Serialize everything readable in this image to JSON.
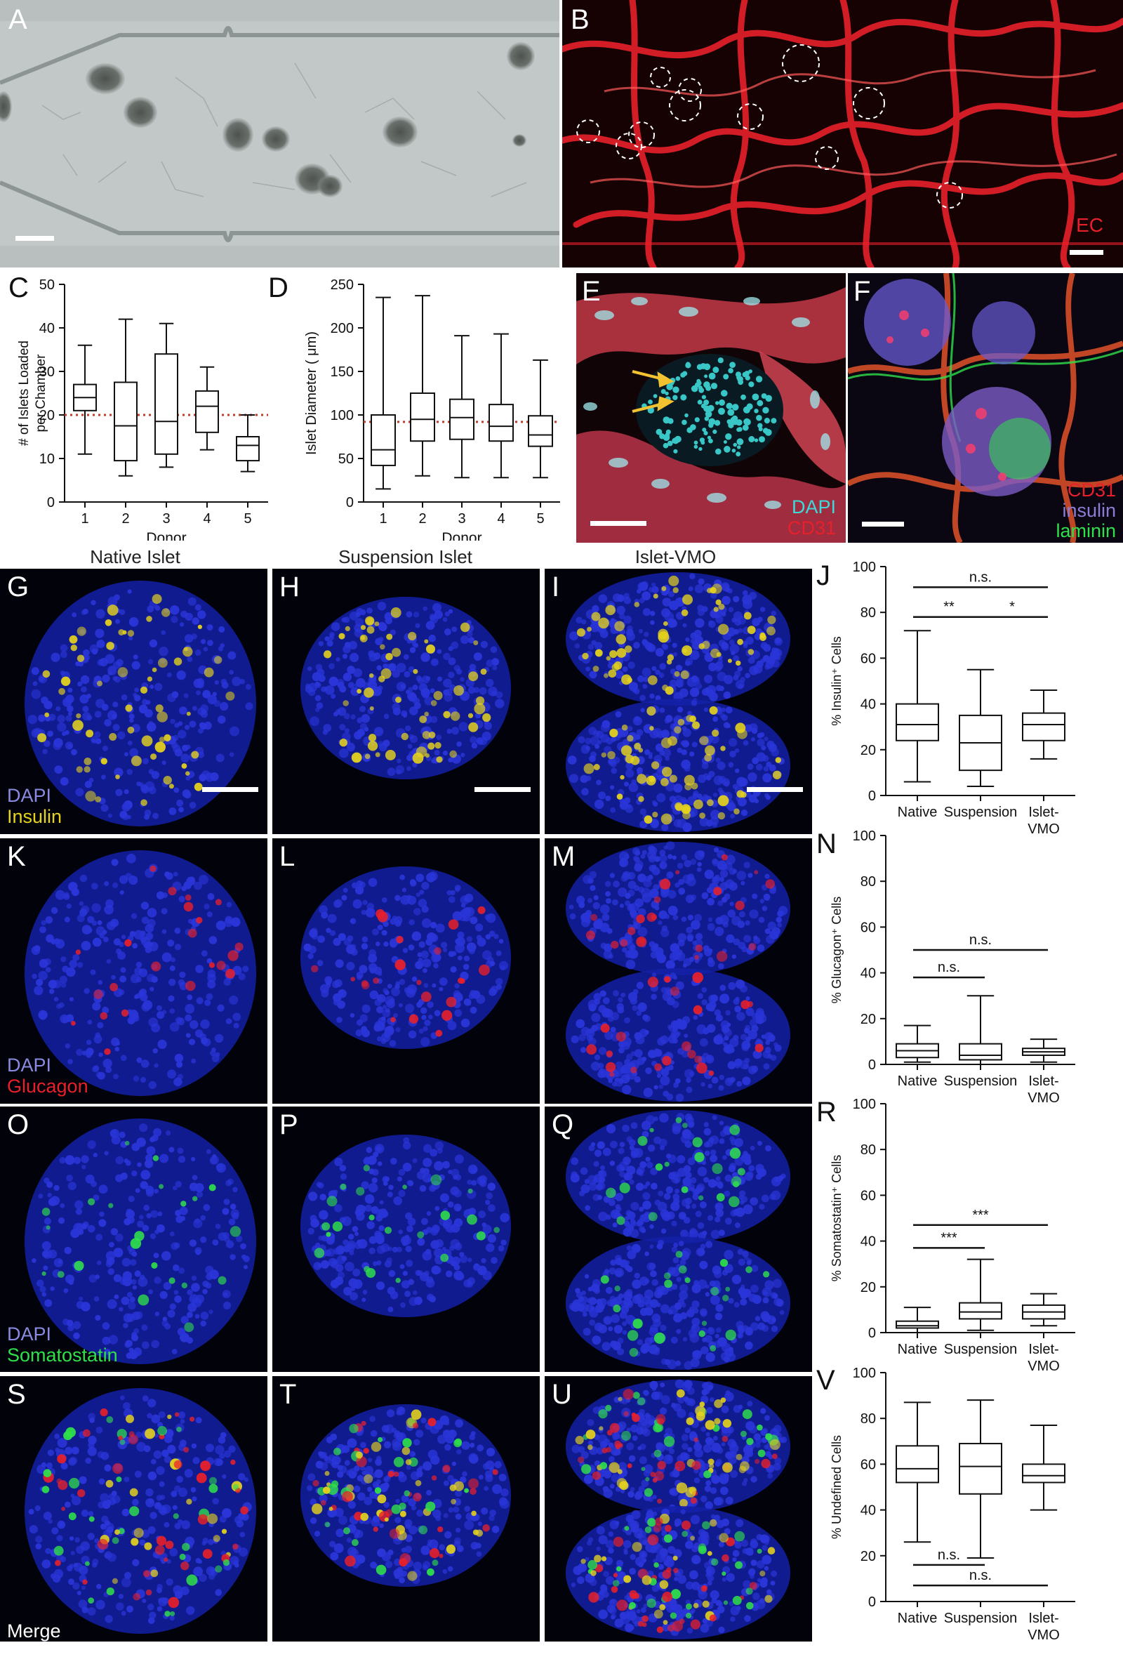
{
  "panel_labels": [
    "A",
    "B",
    "C",
    "D",
    "E",
    "F",
    "G",
    "H",
    "I",
    "J",
    "K",
    "L",
    "M",
    "N",
    "O",
    "P",
    "Q",
    "R",
    "S",
    "T",
    "U",
    "V"
  ],
  "column_titles": [
    "Native Islet",
    "Suspension Islet",
    "Islet-VMO"
  ],
  "stains": {
    "b": [
      "EC"
    ],
    "e": [
      "DAPI",
      "CD31"
    ],
    "f": [
      "CD31",
      "insulin",
      "laminin"
    ],
    "g": [
      "DAPI",
      "Insulin"
    ],
    "k": [
      "DAPI",
      "Glucagon"
    ],
    "o": [
      "DAPI",
      "Somatostatin"
    ],
    "s": [
      "Merge"
    ]
  },
  "colors": {
    "red": "#e8202a",
    "cyan": "#3fd9d9",
    "yellow": "#e6d31c",
    "blue": "#2a35d8",
    "green": "#2fe04a",
    "purple": "#8c7cd6",
    "violet": "#6a5bd6",
    "refline": "#c0392b"
  },
  "chart_data": [
    {
      "id": "C",
      "type": "boxplot",
      "xlabel": "Donor",
      "ylabel": "# of Islets Loaded per Chamber",
      "categories": [
        "1",
        "2",
        "3",
        "4",
        "5"
      ],
      "yticks": [
        "0",
        "10",
        "20",
        "30",
        "40",
        "50"
      ],
      "ylim": [
        0,
        50
      ],
      "reference_line": 20,
      "boxes": [
        {
          "min": 11,
          "q1": 21,
          "median": 24,
          "q3": 27,
          "max": 36
        },
        {
          "min": 6,
          "q1": 9.5,
          "median": 17.5,
          "q3": 27.5,
          "max": 42
        },
        {
          "min": 8,
          "q1": 11,
          "median": 18.5,
          "q3": 34,
          "max": 41
        },
        {
          "min": 12,
          "q1": 16,
          "median": 22,
          "q3": 25.5,
          "max": 31
        },
        {
          "min": 7,
          "q1": 9.5,
          "median": 13,
          "q3": 15,
          "max": 20
        }
      ]
    },
    {
      "id": "D",
      "type": "boxplot",
      "xlabel": "Donor",
      "ylabel": "Islet Diameter ( μm)",
      "categories": [
        "1",
        "2",
        "3",
        "4",
        "5"
      ],
      "yticks": [
        "0",
        "50",
        "100",
        "150",
        "200",
        "250"
      ],
      "ylim": [
        0,
        250
      ],
      "reference_line": 92,
      "boxes": [
        {
          "min": 15,
          "q1": 42,
          "median": 60,
          "q3": 100,
          "max": 235
        },
        {
          "min": 30,
          "q1": 70,
          "median": 95,
          "q3": 125,
          "max": 237
        },
        {
          "min": 28,
          "q1": 72,
          "median": 97,
          "q3": 118,
          "max": 191
        },
        {
          "min": 28,
          "q1": 70,
          "median": 87,
          "q3": 112,
          "max": 193
        },
        {
          "min": 28,
          "q1": 64,
          "median": 77,
          "q3": 99,
          "max": 163
        }
      ]
    },
    {
      "id": "J",
      "type": "boxplot",
      "ylabel": "% Insulin⁺ Cells",
      "categories": [
        "Native",
        "Suspension",
        "Islet-\nVMO"
      ],
      "yticks": [
        "0",
        "20",
        "40",
        "60",
        "80",
        "100"
      ],
      "ylim": [
        0,
        100
      ],
      "boxes": [
        {
          "min": 6,
          "q1": 24,
          "median": 31,
          "q3": 40,
          "max": 72
        },
        {
          "min": 4,
          "q1": 11,
          "median": 23,
          "q3": 35,
          "max": 55
        },
        {
          "min": 16,
          "q1": 24,
          "median": 31,
          "q3": 36,
          "max": 46
        }
      ],
      "significance": [
        {
          "from": 0,
          "to": 2,
          "text": "n.s.",
          "y": 91
        },
        {
          "from": 0,
          "to": 1,
          "text": "**",
          "y": 78
        },
        {
          "from": 1,
          "to": 2,
          "text": "*",
          "y": 78
        }
      ]
    },
    {
      "id": "N",
      "type": "boxplot",
      "ylabel": "% Glucagon⁺ Cells",
      "categories": [
        "Native",
        "Suspension",
        "Islet-\nVMO"
      ],
      "yticks": [
        "0",
        "20",
        "40",
        "60",
        "80",
        "100"
      ],
      "ylim": [
        0,
        100
      ],
      "boxes": [
        {
          "min": 1,
          "q1": 3,
          "median": 6,
          "q3": 9,
          "max": 17
        },
        {
          "min": 0,
          "q1": 2,
          "median": 4,
          "q3": 9,
          "max": 30
        },
        {
          "min": 1,
          "q1": 4,
          "median": 5.5,
          "q3": 7,
          "max": 11
        }
      ],
      "significance": [
        {
          "from": 0,
          "to": 2,
          "text": "n.s.",
          "y": 50
        },
        {
          "from": 0,
          "to": 1,
          "text": "n.s.",
          "y": 38
        }
      ]
    },
    {
      "id": "R",
      "type": "boxplot",
      "ylabel": "% Somatostatin⁺ Cells",
      "categories": [
        "Native",
        "Suspension",
        "Islet-\nVMO"
      ],
      "yticks": [
        "0",
        "20",
        "40",
        "60",
        "80",
        "100"
      ],
      "ylim": [
        0,
        100
      ],
      "boxes": [
        {
          "min": 0,
          "q1": 2,
          "median": 3,
          "q3": 5,
          "max": 11
        },
        {
          "min": 1,
          "q1": 6,
          "median": 9,
          "q3": 13,
          "max": 32
        },
        {
          "min": 3,
          "q1": 6,
          "median": 9,
          "q3": 12,
          "max": 17
        }
      ],
      "significance": [
        {
          "from": 0,
          "to": 2,
          "text": "***",
          "y": 47
        },
        {
          "from": 0,
          "to": 1,
          "text": "***",
          "y": 37
        }
      ]
    },
    {
      "id": "V",
      "type": "boxplot",
      "ylabel": "% Undefined Cells",
      "categories": [
        "Native",
        "Suspension",
        "Islet-\nVMO"
      ],
      "yticks": [
        "0",
        "20",
        "40",
        "60",
        "80",
        "100"
      ],
      "ylim": [
        0,
        100
      ],
      "boxes": [
        {
          "min": 26,
          "q1": 52,
          "median": 58,
          "q3": 68,
          "max": 87
        },
        {
          "min": 19,
          "q1": 47,
          "median": 59,
          "q3": 69,
          "max": 88
        },
        {
          "min": 40,
          "q1": 52,
          "median": 55,
          "q3": 60,
          "max": 77
        }
      ],
      "significance": [
        {
          "from": 0,
          "to": 1,
          "text": "n.s.",
          "y": 16
        },
        {
          "from": 0,
          "to": 2,
          "text": "n.s.",
          "y": 7
        }
      ]
    }
  ]
}
